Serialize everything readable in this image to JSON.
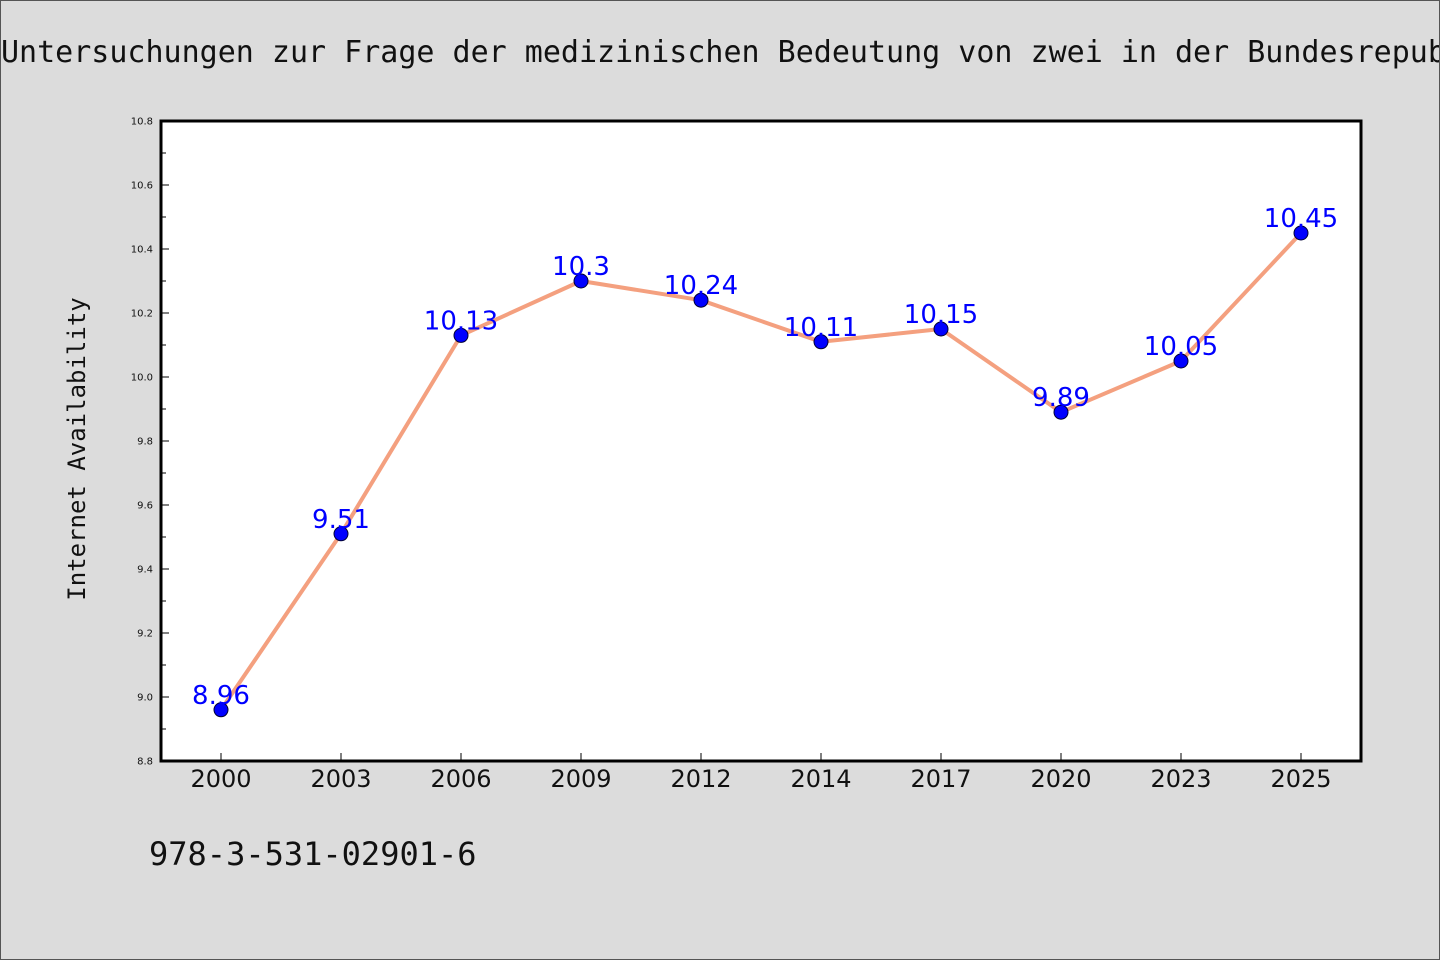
{
  "chart_data": {
    "type": "line",
    "title": "Untersuchungen zur Frage der medizinischen Bedeutung von zwei in der Bundesrepub",
    "xlabel": "",
    "ylabel": "Internet Availability",
    "categories": [
      "2000",
      "2003",
      "2006",
      "2009",
      "2012",
      "2014",
      "2017",
      "2020",
      "2023",
      "2025"
    ],
    "series": [
      {
        "values": [
          8.96,
          9.51,
          10.13,
          10.3,
          10.24,
          10.11,
          10.15,
          9.89,
          10.05,
          10.45
        ],
        "labels": [
          "8.96",
          "9.51",
          "10.13",
          "10.3",
          "10.24",
          "10.11",
          "10.15",
          "9.89",
          "10.05",
          "10.45"
        ]
      }
    ],
    "ylim": [
      8.8,
      10.8
    ],
    "yticks": [
      "8.8",
      "9.0",
      "9.2",
      "9.4",
      "9.6",
      "9.8",
      "10.0",
      "10.2",
      "10.4",
      "10.6",
      "10.8"
    ],
    "grid": false,
    "colors": {
      "line": "#f4a07f",
      "marker": "#0000ff",
      "label": "#0000ff"
    }
  },
  "footer": {
    "isbn": "978-3-531-02901-6"
  }
}
